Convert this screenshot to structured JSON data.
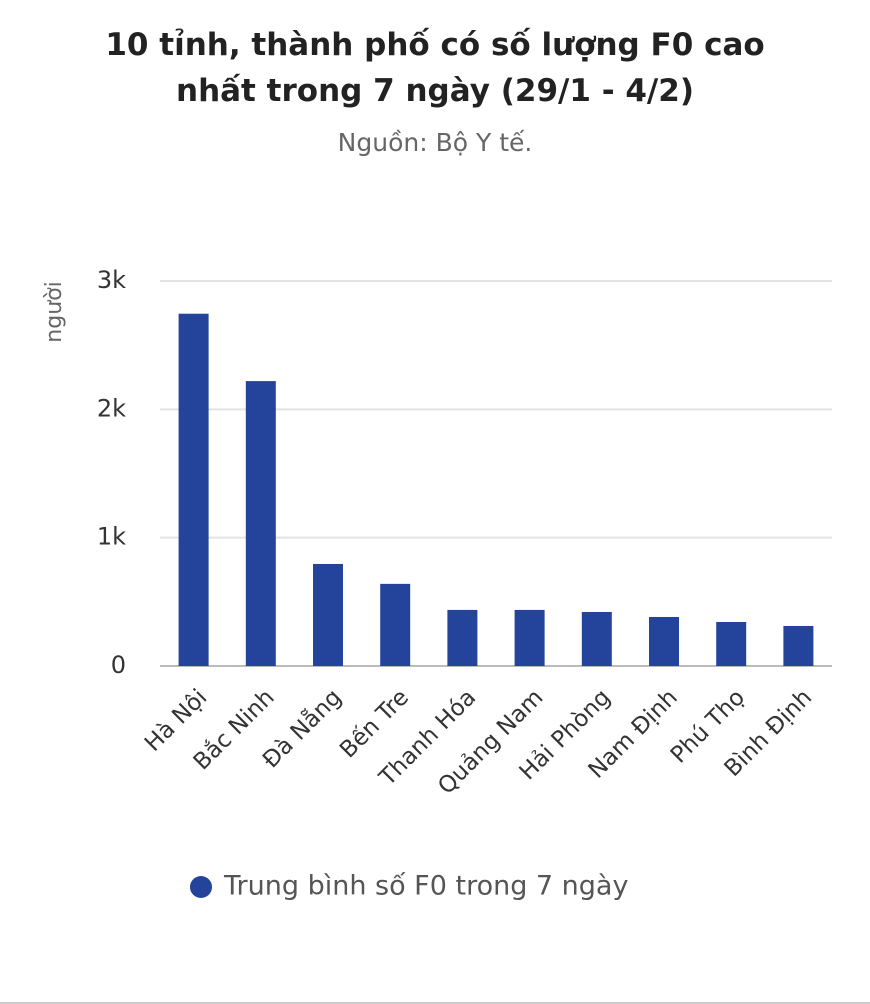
{
  "chart_data": {
    "type": "bar",
    "title": "10 tỉnh, thành phố có số lượng F0 cao nhất trong 7 ngày (29/1 - 4/2)",
    "subtitle": "Nguồn: Bộ Y tế.",
    "y_label": "người",
    "categories": [
      "Hà Nội",
      "Bắc Ninh",
      "Đà Nẵng",
      "Bến Tre",
      "Thanh Hóa",
      "Quảng Nam",
      "Hải Phòng",
      "Nam Định",
      "Phú Thọ",
      "Bình Định"
    ],
    "series": [
      {
        "name": "Trung bình số F0 trong 7 ngày",
        "color": "#23449a",
        "values": [
          2745,
          2220,
          795,
          640,
          437,
          437,
          421,
          382,
          343,
          312
        ]
      }
    ],
    "ylim": [
      0,
      3000
    ],
    "yticks": [
      0,
      {
        "value": 1000,
        "label": "1k"
      },
      {
        "value": 2000,
        "label": "2k"
      },
      {
        "value": 3000,
        "label": "3k"
      }
    ],
    "grid": true,
    "legend": "bottom"
  }
}
